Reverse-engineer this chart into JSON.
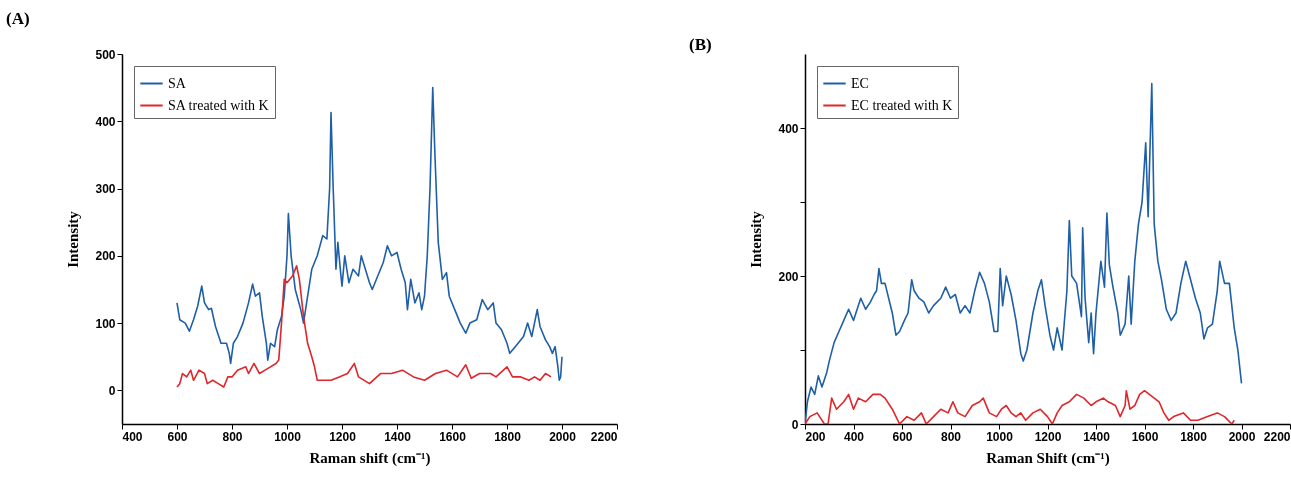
{
  "chart_data": [
    {
      "type": "line",
      "title": "(A)",
      "xlabel": "Raman shift (cm⁻¹)",
      "ylabel": "Intensity",
      "xlim": [
        400,
        2200
      ],
      "xticks": [
        400,
        600,
        800,
        1000,
        1200,
        1400,
        1600,
        1800,
        2000,
        2200
      ],
      "ylim": [
        -50,
        500
      ],
      "yticks": [
        0,
        100,
        200,
        300,
        400,
        500
      ],
      "legend": "top left",
      "series": [
        {
          "name": "SA",
          "color": "#1f5fa8",
          "x": [
            600,
            610,
            630,
            645,
            660,
            675,
            690,
            700,
            715,
            725,
            740,
            760,
            780,
            790,
            795,
            805,
            820,
            840,
            860,
            875,
            885,
            900,
            910,
            925,
            930,
            940,
            955,
            965,
            980,
            990,
            1000,
            1005,
            1015,
            1030,
            1050,
            1060,
            1075,
            1090,
            1110,
            1130,
            1145,
            1155,
            1160,
            1168,
            1178,
            1185,
            1195,
            1200,
            1210,
            1225,
            1240,
            1260,
            1270,
            1285,
            1300,
            1310,
            1330,
            1350,
            1365,
            1380,
            1400,
            1415,
            1430,
            1438,
            1450,
            1465,
            1480,
            1490,
            1500,
            1510,
            1520,
            1530,
            1538,
            1550,
            1565,
            1580,
            1590,
            1610,
            1630,
            1650,
            1665,
            1690,
            1710,
            1730,
            1750,
            1760,
            1780,
            1800,
            1810,
            1830,
            1860,
            1875,
            1890,
            1910,
            1920,
            1940,
            1955,
            1965,
            1975,
            1985,
            1990,
            1995,
            2000
          ],
          "values": [
            130,
            105,
            100,
            88,
            105,
            125,
            155,
            130,
            120,
            122,
            95,
            70,
            70,
            55,
            40,
            70,
            80,
            100,
            130,
            158,
            140,
            145,
            110,
            70,
            45,
            70,
            65,
            90,
            110,
            140,
            200,
            263,
            200,
            150,
            120,
            100,
            140,
            180,
            200,
            230,
            225,
            300,
            413,
            300,
            180,
            220,
            175,
            155,
            200,
            160,
            180,
            170,
            200,
            180,
            160,
            150,
            170,
            190,
            215,
            200,
            205,
            180,
            160,
            120,
            165,
            130,
            145,
            120,
            140,
            200,
            300,
            450,
            350,
            220,
            165,
            175,
            140,
            120,
            100,
            85,
            100,
            105,
            135,
            120,
            130,
            100,
            90,
            70,
            55,
            65,
            80,
            100,
            80,
            120,
            95,
            75,
            65,
            55,
            65,
            35,
            15,
            20,
            50
          ]
        },
        {
          "name": "SA treated with K",
          "color": "#e0262a",
          "x": [
            600,
            610,
            620,
            635,
            650,
            660,
            680,
            700,
            710,
            730,
            750,
            770,
            785,
            800,
            820,
            850,
            860,
            880,
            900,
            920,
            940,
            960,
            970,
            980,
            990,
            1000,
            1010,
            1020,
            1035,
            1045,
            1060,
            1075,
            1090,
            1100,
            1110,
            1130,
            1160,
            1190,
            1220,
            1245,
            1260,
            1300,
            1340,
            1380,
            1420,
            1460,
            1500,
            1540,
            1580,
            1620,
            1650,
            1670,
            1700,
            1740,
            1760,
            1800,
            1820,
            1850,
            1880,
            1900,
            1920,
            1940,
            1960
          ],
          "values": [
            5,
            10,
            25,
            20,
            30,
            15,
            30,
            25,
            10,
            15,
            10,
            5,
            20,
            20,
            30,
            35,
            25,
            40,
            25,
            30,
            35,
            40,
            45,
            100,
            165,
            160,
            165,
            170,
            185,
            165,
            110,
            70,
            50,
            35,
            15,
            15,
            15,
            20,
            25,
            40,
            20,
            10,
            25,
            25,
            30,
            20,
            15,
            25,
            30,
            20,
            38,
            18,
            25,
            25,
            20,
            35,
            20,
            20,
            15,
            20,
            15,
            25,
            20
          ]
        }
      ]
    },
    {
      "type": "line",
      "title": "(B)",
      "xlabel": "Raman Shift (cm⁻¹)",
      "ylabel": "Intensity",
      "xlim": [
        200,
        2200
      ],
      "xticks": [
        200,
        400,
        600,
        800,
        1000,
        1200,
        1400,
        1600,
        1800,
        2000,
        2200
      ],
      "ylim": [
        0,
        500
      ],
      "yticks": [
        0,
        {
          "value": 100,
          "label": null
        },
        200,
        {
          "value": 300,
          "label": null
        },
        400
      ],
      "legend": "top left",
      "series": [
        {
          "name": "EC",
          "color": "#1f5fa8",
          "x": [
            200,
            210,
            225,
            240,
            255,
            270,
            290,
            300,
            320,
            340,
            360,
            380,
            400,
            420,
            430,
            450,
            470,
            485,
            495,
            505,
            515,
            530,
            545,
            560,
            575,
            590,
            610,
            625,
            640,
            650,
            670,
            690,
            710,
            730,
            760,
            780,
            800,
            820,
            840,
            860,
            880,
            900,
            920,
            940,
            960,
            980,
            995,
            1005,
            1015,
            1030,
            1050,
            1070,
            1090,
            1100,
            1115,
            1140,
            1160,
            1175,
            1190,
            1210,
            1225,
            1240,
            1260,
            1280,
            1290,
            1300,
            1320,
            1340,
            1345,
            1355,
            1370,
            1380,
            1390,
            1400,
            1420,
            1435,
            1445,
            1455,
            1470,
            1490,
            1500,
            1520,
            1535,
            1545,
            1560,
            1575,
            1590,
            1605,
            1615,
            1630,
            1640,
            1655,
            1670,
            1690,
            1710,
            1730,
            1750,
            1770,
            1790,
            1810,
            1830,
            1845,
            1860,
            1880,
            1900,
            1910,
            1930,
            1950,
            1970,
            1985,
            2000
          ],
          "values": [
            0,
            30,
            50,
            40,
            65,
            50,
            70,
            85,
            110,
            125,
            140,
            155,
            140,
            160,
            170,
            155,
            165,
            175,
            180,
            210,
            190,
            190,
            170,
            150,
            120,
            125,
            140,
            150,
            195,
            180,
            170,
            165,
            150,
            160,
            170,
            185,
            170,
            175,
            150,
            160,
            150,
            180,
            205,
            190,
            165,
            125,
            125,
            210,
            160,
            200,
            175,
            140,
            95,
            85,
            100,
            150,
            180,
            195,
            160,
            120,
            100,
            130,
            100,
            180,
            275,
            200,
            190,
            145,
            265,
            170,
            110,
            150,
            95,
            150,
            220,
            185,
            285,
            215,
            185,
            150,
            120,
            135,
            200,
            135,
            220,
            270,
            300,
            380,
            280,
            460,
            270,
            220,
            195,
            155,
            140,
            150,
            190,
            220,
            195,
            170,
            150,
            115,
            130,
            135,
            180,
            220,
            190,
            190,
            130,
            100,
            55
          ]
        },
        {
          "name": "EC treated with K",
          "color": "#e0262a",
          "x": [
            200,
            220,
            250,
            280,
            295,
            310,
            330,
            360,
            380,
            400,
            420,
            450,
            480,
            510,
            530,
            560,
            590,
            620,
            650,
            680,
            700,
            730,
            760,
            790,
            810,
            830,
            860,
            890,
            920,
            935,
            960,
            990,
            1010,
            1030,
            1050,
            1070,
            1090,
            1110,
            1140,
            1170,
            1200,
            1220,
            1240,
            1260,
            1290,
            1320,
            1350,
            1380,
            1400,
            1430,
            1450,
            1480,
            1500,
            1520,
            1525,
            1540,
            1560,
            1580,
            1600,
            1620,
            1640,
            1660,
            1680,
            1700,
            1720,
            1760,
            1790,
            1820,
            1860,
            1900,
            1930,
            1960,
            1970
          ],
          "values": [
            0,
            10,
            15,
            0,
            0,
            35,
            20,
            30,
            40,
            20,
            35,
            30,
            40,
            40,
            35,
            20,
            0,
            10,
            5,
            15,
            0,
            10,
            20,
            15,
            30,
            15,
            10,
            25,
            30,
            35,
            15,
            10,
            20,
            25,
            15,
            10,
            15,
            5,
            15,
            20,
            10,
            0,
            15,
            25,
            30,
            40,
            35,
            25,
            30,
            35,
            30,
            25,
            10,
            25,
            45,
            20,
            25,
            40,
            45,
            40,
            35,
            30,
            15,
            5,
            10,
            15,
            5,
            5,
            10,
            15,
            10,
            0,
            5
          ]
        }
      ]
    }
  ]
}
